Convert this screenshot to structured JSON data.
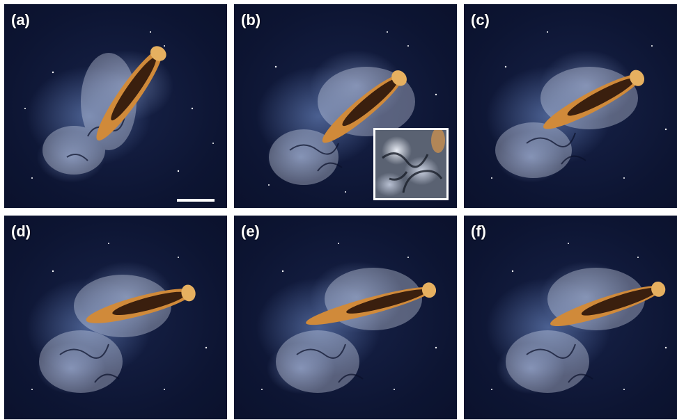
{
  "panels": [
    {
      "label": "(a)"
    },
    {
      "label": "(b)"
    },
    {
      "label": "(c)"
    },
    {
      "label": "(d)"
    },
    {
      "label": "(e)"
    },
    {
      "label": "(f)"
    }
  ],
  "colors": {
    "background": "#0d1533",
    "fish_body": "#d08a3a",
    "fish_dark": "#3a1f0e",
    "dye": "#a8bde8",
    "frame": "#ffffff"
  }
}
